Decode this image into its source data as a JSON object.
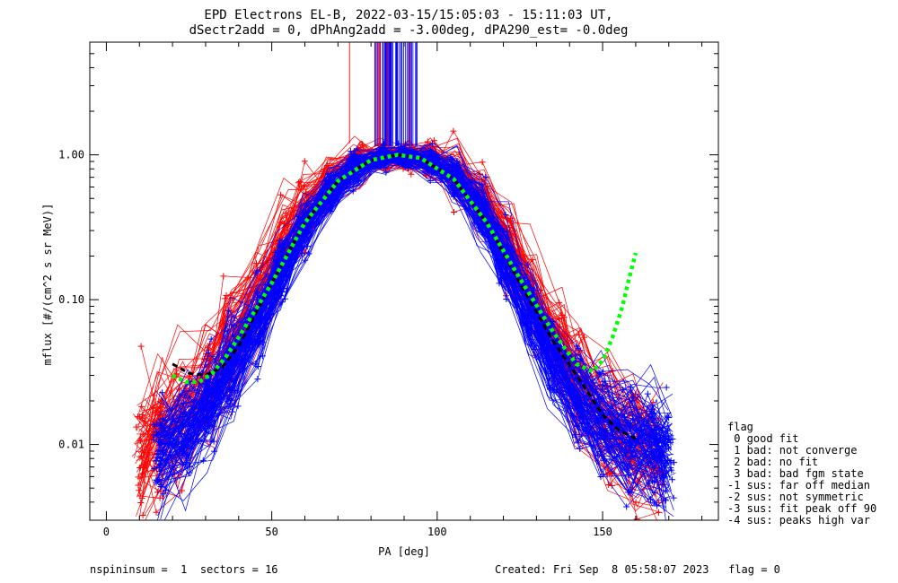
{
  "chart_data": {
    "type": "line",
    "title": "EPD Electrons EL-B, 2022-03-15/15:05:03 - 15:11:03 UT,",
    "subtitle": "dSectr2add = 0, dPhAng2add = -3.00deg, dPA290_est=  -0.0deg",
    "xlabel": "PA [deg]",
    "ylabel": "mflux [#/(cm^2 s sr MeV)]",
    "xlim": [
      -5,
      185
    ],
    "ylim": [
      0.003,
      6
    ],
    "yscale": "log",
    "xticks": [
      0,
      50,
      100,
      150
    ],
    "xtick_labels": [
      "0",
      "50",
      "100",
      "150"
    ],
    "yticks": [
      0.01,
      0.1,
      1.0
    ],
    "ytick_labels": [
      "0.01",
      "0.10",
      "1.00"
    ],
    "grid": false,
    "series": [
      {
        "color": "#ff0000",
        "style": "line-with-plus-markers",
        "x": [
          10,
          16,
          22,
          31,
          37,
          47,
          54,
          60,
          67,
          76,
          84,
          92,
          98,
          106,
          114,
          122,
          129,
          137,
          143,
          152,
          160,
          167
        ],
        "y": [
          0.009,
          0.011,
          0.016,
          0.028,
          0.05,
          0.12,
          0.27,
          0.42,
          0.62,
          0.86,
          0.97,
          0.99,
          0.93,
          0.72,
          0.46,
          0.24,
          0.11,
          0.048,
          0.024,
          0.014,
          0.011,
          0.009
        ]
      },
      {
        "color": "#0000ff",
        "style": "line-with-plus-markers",
        "x": [
          16,
          24,
          31,
          38,
          46,
          53,
          60,
          68,
          75,
          83,
          90,
          98,
          105,
          113,
          120,
          128,
          135,
          143,
          150,
          158,
          165,
          170
        ],
        "y": [
          0.009,
          0.012,
          0.019,
          0.035,
          0.075,
          0.16,
          0.32,
          0.56,
          0.8,
          0.96,
          0.98,
          0.92,
          0.72,
          0.42,
          0.2,
          0.085,
          0.04,
          0.021,
          0.014,
          0.011,
          0.0095,
          0.009
        ]
      },
      {
        "color": "#000000",
        "style": "dashed",
        "x": [
          20,
          25,
          30,
          35,
          40,
          50,
          60,
          70,
          80,
          88,
          95,
          105,
          115,
          125,
          135,
          145,
          150,
          155,
          160
        ],
        "y": [
          0.036,
          0.031,
          0.03,
          0.034,
          0.048,
          0.13,
          0.34,
          0.66,
          0.92,
          1.0,
          0.95,
          0.68,
          0.34,
          0.13,
          0.052,
          0.024,
          0.016,
          0.0125,
          0.011
        ]
      },
      {
        "color": "#00ff00",
        "style": "dashed-fit",
        "x": [
          20,
          24,
          28,
          32,
          36,
          40,
          50,
          60,
          70,
          80,
          88,
          95,
          105,
          115,
          125,
          135,
          142,
          147,
          150,
          153,
          156,
          158,
          160
        ],
        "y": [
          0.03,
          0.027,
          0.027,
          0.031,
          0.04,
          0.055,
          0.13,
          0.34,
          0.66,
          0.92,
          1.0,
          0.95,
          0.68,
          0.34,
          0.14,
          0.06,
          0.036,
          0.032,
          0.038,
          0.055,
          0.09,
          0.14,
          0.21
        ]
      }
    ],
    "legend_title": "flag",
    "legend_entries": [
      " 0 good fit",
      " 1 bad: not converge",
      " 2 bad: no fit",
      " 3 bad: bad fgm state",
      "-1 sus: far off median",
      "-2 sus: not symmetric",
      "-3 sus: fit peak off 90",
      "-4 sus: peaks high var"
    ],
    "legend_position": "right"
  },
  "footer": {
    "left": "nspininsum =  1  sectors = 16",
    "right": "Created: Fri Sep  8 05:58:07 2023   flag = 0"
  }
}
